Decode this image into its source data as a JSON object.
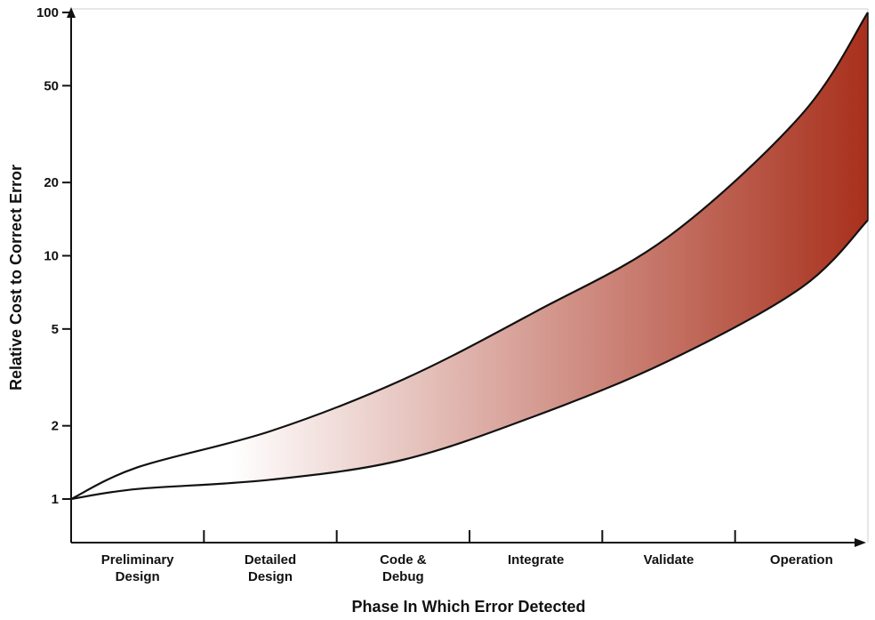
{
  "chart_data": {
    "type": "area",
    "title": "",
    "xlabel": "Phase In Which Error Detected",
    "ylabel": "Relative Cost to Correct Error",
    "yscale": "log",
    "ylim": [
      0.6,
      100
    ],
    "yticks": [
      1,
      2,
      5,
      10,
      20,
      50,
      100
    ],
    "categories": [
      [
        "Preliminary",
        "Design"
      ],
      [
        "Detailed",
        "Design"
      ],
      [
        "Code &",
        "Debug"
      ],
      [
        "Integrate"
      ],
      [
        "Validate"
      ],
      [
        "Operation"
      ]
    ],
    "x": [
      0,
      0.5,
      1.5,
      2.5,
      3.5,
      4.5,
      5.5,
      6
    ],
    "series": [
      {
        "role": "upper",
        "values": [
          1,
          1.35,
          1.9,
          3.1,
          5.9,
          12,
          38,
          100
        ]
      },
      {
        "role": "lower",
        "values": [
          1,
          1.1,
          1.2,
          1.45,
          2.2,
          3.7,
          7.4,
          14
        ]
      }
    ],
    "grid": false,
    "legend": "none",
    "colors": {
      "band_start": "#ffffff",
      "band_end": "#a8301c",
      "line": "#111111",
      "axis": "#111111"
    }
  }
}
